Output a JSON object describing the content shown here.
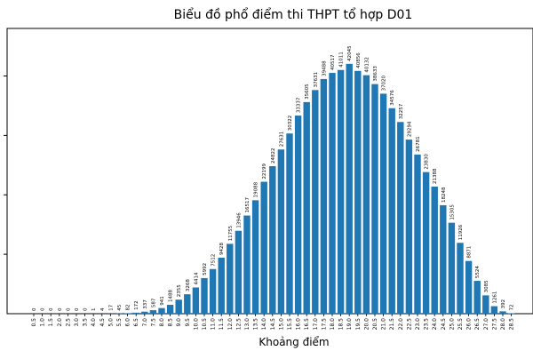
{
  "chart_data": {
    "type": "bar",
    "title": "Biểu đồ phổ điểm thi THPT tổ hợp D01",
    "xlabel": "Khoảng điểm",
    "ylabel": "",
    "ylim": [
      0,
      48000
    ],
    "bar_color": "#1f77b4",
    "categories": [
      "0.5",
      "1.0",
      "1.5",
      "2.0",
      "2.5",
      "3.0",
      "3.5",
      "4.0",
      "4.5",
      "5.0",
      "5.5",
      "6.0",
      "6.5",
      "7.0",
      "7.5",
      "8.0",
      "8.5",
      "9.0",
      "9.5",
      "10.0",
      "10.5",
      "11.0",
      "11.5",
      "12.0",
      "12.5",
      "13.0",
      "13.5",
      "14.0",
      "14.5",
      "15.0",
      "15.5",
      "16.0",
      "16.5",
      "17.0",
      "17.5",
      "18.0",
      "18.5",
      "19.0",
      "19.5",
      "20.0",
      "20.5",
      "21.0",
      "21.5",
      "22.0",
      "22.5",
      "23.0",
      "23.5",
      "24.0",
      "24.5",
      "25.0",
      "25.5",
      "26.0",
      "26.5",
      "27.0",
      "27.5",
      "28.0",
      "28.5"
    ],
    "values": [
      0,
      0,
      0,
      0,
      0,
      0,
      0,
      1,
      4,
      17,
      45,
      82,
      172,
      337,
      587,
      941,
      1488,
      2355,
      3268,
      4414,
      5992,
      7512,
      9428,
      11755,
      13946,
      16517,
      19088,
      22199,
      24822,
      27631,
      30322,
      33337,
      35605,
      37631,
      39488,
      40517,
      41011,
      42045,
      40856,
      40132,
      38633,
      37020,
      34576,
      32257,
      29294,
      26781,
      23830,
      21388,
      18248,
      15305,
      11926,
      8871,
      5524,
      3085,
      1261,
      392,
      72
    ]
  }
}
